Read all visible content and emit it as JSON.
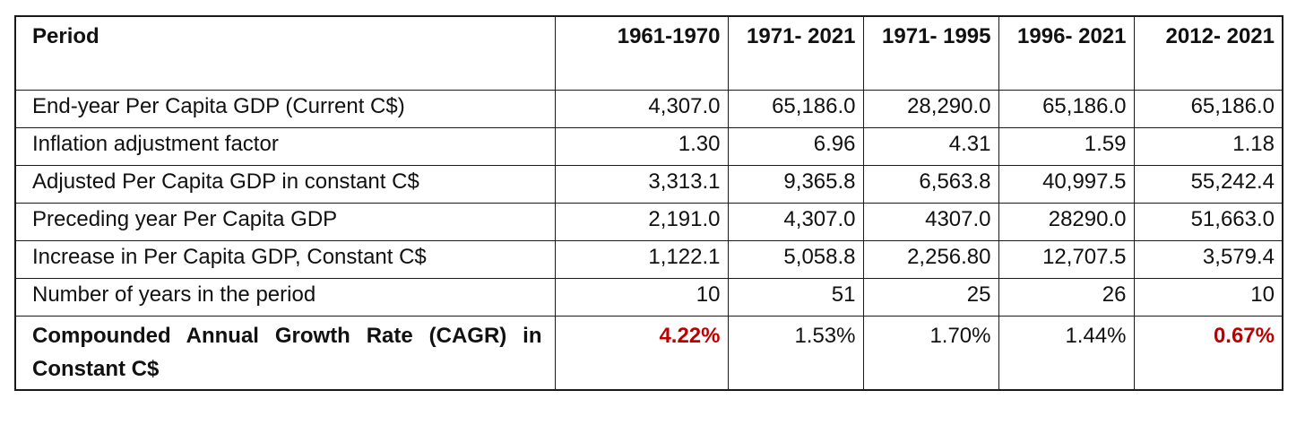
{
  "table": {
    "headers": [
      "Period",
      "1961-1970",
      "1971- 2021",
      "1971- 1995",
      "1996- 2021",
      "2012- 2021"
    ],
    "rows": [
      {
        "label": "End-year Per Capita GDP (Current C$)",
        "values": [
          "4,307.0",
          "65,186.0",
          "28,290.0",
          "65,186.0",
          "65,186.0"
        ]
      },
      {
        "label": "Inflation adjustment factor",
        "values": [
          "1.30",
          "6.96",
          "4.31",
          "1.59",
          "1.18"
        ]
      },
      {
        "label": "Adjusted Per Capita GDP in constant C$",
        "values": [
          "3,313.1",
          "9,365.8",
          "6,563.8",
          "40,997.5",
          "55,242.4"
        ]
      },
      {
        "label": "Preceding year Per Capita GDP",
        "values": [
          "2,191.0",
          "4,307.0",
          "4307.0",
          "28290.0",
          "51,663.0"
        ]
      },
      {
        "label": "Increase in Per Capita GDP, Constant C$",
        "values": [
          "1,122.1",
          "5,058.8",
          "2,256.80",
          "12,707.5",
          "3,579.4"
        ]
      },
      {
        "label": "Number of years in the period",
        "values": [
          "10",
          "51",
          "25",
          "26",
          "10"
        ]
      },
      {
        "label": "Compounded Annual Growth Rate (CAGR) in Constant C$",
        "values": [
          "4.22%",
          "1.53%",
          "1.70%",
          "1.44%",
          "0.67%"
        ]
      }
    ],
    "highlight_color": "#c00000"
  }
}
